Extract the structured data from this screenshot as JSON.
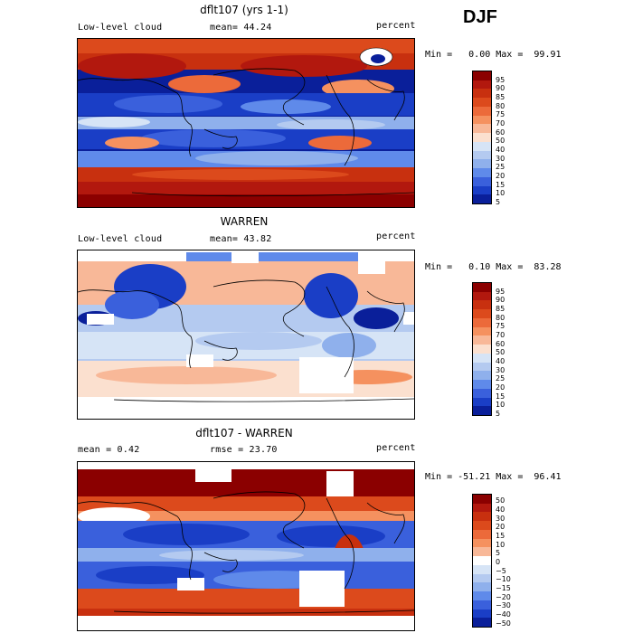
{
  "season": "DJF",
  "panels": [
    {
      "title": "dflt107 (yrs 1-1)",
      "left_label": "Low-level cloud",
      "center_label": "mean=  44.24",
      "right_label": "percent",
      "minmax": "Min =   0.00 Max =  99.91",
      "colorbar": [
        "95",
        "90",
        "85",
        "80",
        "75",
        "70",
        "60",
        "50",
        "40",
        "30",
        "25",
        "20",
        "15",
        "10",
        "5"
      ]
    },
    {
      "title": "WARREN",
      "left_label": "Low-level cloud",
      "center_label": "mean=  43.82",
      "right_label": "percent",
      "minmax": "Min =   0.10 Max =  83.28",
      "colorbar": [
        "95",
        "90",
        "85",
        "80",
        "75",
        "70",
        "60",
        "50",
        "40",
        "30",
        "25",
        "20",
        "15",
        "10",
        "5"
      ]
    },
    {
      "title": "dflt107 - WARREN",
      "left_label": "mean =    0.42",
      "center_label": "rmse =  23.70",
      "right_label": "percent",
      "minmax": "Min = -51.21 Max =  96.41",
      "colorbar": [
        "50",
        "40",
        "30",
        "20",
        "15",
        "10",
        "5",
        "0",
        "−5",
        "−10",
        "−15",
        "−20",
        "−30",
        "−40",
        "−50"
      ]
    }
  ],
  "colors": {
    "scale": [
      "#8b0000",
      "#b2180e",
      "#c8300f",
      "#dc4a1c",
      "#ec6a3a",
      "#f5915f",
      "#f8b898",
      "#fbe0cf",
      "#ffffff",
      "#d6e4f6",
      "#b4caf0",
      "#8fb0ec",
      "#5f8aea",
      "#3a60dc",
      "#1a3ec6",
      "#0a1f9a"
    ]
  }
}
